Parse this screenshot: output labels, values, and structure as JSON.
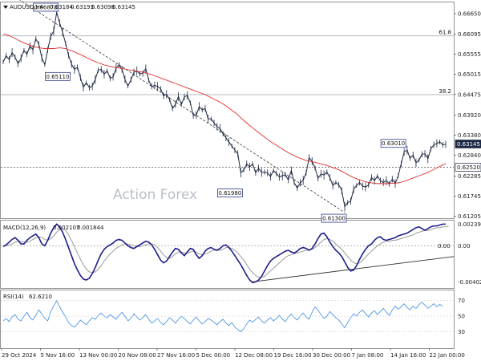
{
  "chart_data": [
    {
      "type": "candlestick",
      "header": {
        "symbol": "AUDUSD,H4",
        "ohlc": [
          "0.63184",
          "0.63193",
          "0.63098",
          "0.63145"
        ]
      },
      "watermark": "Action Forex",
      "ylim": [
        0.6115,
        0.6695
      ],
      "yticks": [
        "0.66650",
        "0.66095",
        "0.65555",
        "0.65015",
        "0.64475",
        "0.63920",
        "0.63380",
        "0.62840",
        "0.62285",
        "0.61745",
        "0.61205"
      ],
      "last_price": "0.63145",
      "ma_last": "0.62520",
      "fib_levels": [
        {
          "label": "61.8",
          "value": 0.6605
        },
        {
          "label": "38.2",
          "value": 0.6447
        }
      ],
      "dotted_level": 0.6252,
      "annotations": [
        {
          "text": "0.66870",
          "value": 0.6687,
          "anchor": "high"
        },
        {
          "text": "0.65110",
          "value": 0.6511,
          "anchor": "low"
        },
        {
          "text": "0.61980",
          "value": 0.6198,
          "anchor": "low"
        },
        {
          "text": "0.63010",
          "value": 0.6301,
          "anchor": "high"
        },
        {
          "text": "0.61300",
          "value": 0.613,
          "anchor": "low"
        }
      ],
      "trendline": {
        "from": 0.6687,
        "to": 0.613
      },
      "series": [
        {
          "name": "price",
          "values": [
            0.6535,
            0.6552,
            0.6541,
            0.656,
            0.6548,
            0.653,
            0.6545,
            0.6566,
            0.6556,
            0.6578,
            0.6568,
            0.6597,
            0.6582,
            0.6546,
            0.6528,
            0.6568,
            0.6604,
            0.6618,
            0.6668,
            0.664,
            0.6615,
            0.6585,
            0.6553,
            0.6529,
            0.6515,
            0.6521,
            0.6493,
            0.6467,
            0.6479,
            0.6466,
            0.647,
            0.6488,
            0.6513,
            0.6515,
            0.6502,
            0.6511,
            0.6491,
            0.6495,
            0.6518,
            0.6528,
            0.6515,
            0.6488,
            0.647,
            0.6487,
            0.6507,
            0.6511,
            0.6503,
            0.6504,
            0.6517,
            0.6486,
            0.6469,
            0.6472,
            0.6469,
            0.6463,
            0.6444,
            0.6448,
            0.6434,
            0.641,
            0.6421,
            0.6442,
            0.6421,
            0.6441,
            0.6445,
            0.6425,
            0.6391,
            0.6392,
            0.6415,
            0.6406,
            0.641,
            0.6382,
            0.6382,
            0.6371,
            0.6361,
            0.6356,
            0.6342,
            0.6331,
            0.632,
            0.6309,
            0.6298,
            0.6288,
            0.6237,
            0.6245,
            0.6261,
            0.6253,
            0.6261,
            0.6237,
            0.6249,
            0.6238,
            0.6239,
            0.6237,
            0.6227,
            0.6243,
            0.6235,
            0.6226,
            0.6229,
            0.6232,
            0.6218,
            0.6243,
            0.621,
            0.6196,
            0.621,
            0.6217,
            0.6237,
            0.6278,
            0.6268,
            0.625,
            0.6222,
            0.6234,
            0.6231,
            0.6239,
            0.6224,
            0.6203,
            0.6211,
            0.6205,
            0.6189,
            0.6146,
            0.6157,
            0.6161,
            0.6193,
            0.6203,
            0.6211,
            0.6201,
            0.6199,
            0.6204,
            0.6224,
            0.6216,
            0.6228,
            0.6216,
            0.6211,
            0.6216,
            0.6207,
            0.622,
            0.6208,
            0.6229,
            0.6261,
            0.6293,
            0.6298,
            0.6276,
            0.6285,
            0.6264,
            0.6271,
            0.6287,
            0.6288,
            0.6275,
            0.6302,
            0.6312,
            0.6316,
            0.632,
            0.6312,
            0.6314
          ]
        },
        {
          "name": "ma",
          "values": [
            0.661,
            0.6608,
            0.6606,
            0.6602,
            0.6598,
            0.6594,
            0.659,
            0.6586,
            0.6583,
            0.658,
            0.6577,
            0.6575,
            0.6573,
            0.6572,
            0.6571,
            0.6571,
            0.6571,
            0.6571,
            0.6572,
            0.6573,
            0.6572,
            0.6571,
            0.6568,
            0.6565,
            0.6562,
            0.6558,
            0.6555,
            0.6551,
            0.6547,
            0.6543,
            0.6539,
            0.6536,
            0.6533,
            0.653,
            0.6527,
            0.6525,
            0.6523,
            0.6521,
            0.652,
            0.6519,
            0.6517,
            0.6516,
            0.6514,
            0.6513,
            0.6512,
            0.651,
            0.6509,
            0.6507,
            0.6505,
            0.6503,
            0.6501,
            0.6498,
            0.6495,
            0.6492,
            0.6489,
            0.6486,
            0.6483,
            0.648,
            0.6477,
            0.6474,
            0.6471,
            0.6468,
            0.6465,
            0.6462,
            0.6459,
            0.6456,
            0.6453,
            0.645,
            0.6447,
            0.6443,
            0.6439,
            0.6435,
            0.6431,
            0.6427,
            0.6422,
            0.6417,
            0.6411,
            0.6405,
            0.6399,
            0.6393,
            0.6385,
            0.6378,
            0.6371,
            0.6364,
            0.6358,
            0.6351,
            0.6345,
            0.6339,
            0.6333,
            0.6327,
            0.6321,
            0.6316,
            0.6311,
            0.6306,
            0.6301,
            0.6296,
            0.6291,
            0.6287,
            0.6283,
            0.6279,
            0.6276,
            0.6273,
            0.627,
            0.6268,
            0.6267,
            0.6265,
            0.6263,
            0.6261,
            0.6259,
            0.6257,
            0.6254,
            0.6251,
            0.6248,
            0.6245,
            0.6241,
            0.6236,
            0.6232,
            0.6228,
            0.6224,
            0.6221,
            0.6218,
            0.6215,
            0.6213,
            0.6211,
            0.621,
            0.6209,
            0.6208,
            0.6208,
            0.6208,
            0.6208,
            0.6208,
            0.6209,
            0.6209,
            0.621,
            0.6212,
            0.6214,
            0.6217,
            0.622,
            0.6223,
            0.6226,
            0.6229,
            0.6232,
            0.6235,
            0.6238,
            0.6242,
            0.6246,
            0.625,
            0.6254,
            0.6258,
            0.6262
          ]
        }
      ],
      "colors": {
        "price": "#1e2a44",
        "ma": "#e03030",
        "grid": "#9aa0a6",
        "trend": "#333333"
      }
    },
    {
      "type": "line",
      "header": {
        "name": "MACD(12,26,9)",
        "values": [
          "0.002107",
          "0.001844"
        ]
      },
      "ylim": [
        -0.0046,
        0.0027
      ],
      "yticks": [
        "0.002399",
        "0.00",
        "-0.004021"
      ],
      "zero_label": "0.00",
      "series": [
        {
          "name": "macd",
          "values": [
            -0.0001,
            0.0001,
            0.0004,
            0.0007,
            0.0009,
            0.0006,
            0.0002,
            0.0002,
            0.0006,
            0.0009,
            0.0011,
            0.0013,
            0.0009,
            0.0002,
            0.0,
            0.0006,
            0.0014,
            0.002,
            0.0024,
            0.0021,
            0.0015,
            0.0007,
            -0.0002,
            -0.0011,
            -0.002,
            -0.0027,
            -0.0033,
            -0.0037,
            -0.0038,
            -0.0036,
            -0.0031,
            -0.0024,
            -0.0016,
            -0.0009,
            -0.0004,
            -0.0001,
            0.0001,
            0.0003,
            0.0006,
            0.0007,
            0.0006,
            0.0003,
            0.0,
            -0.0002,
            -0.0003,
            -0.0001,
            0.0001,
            0.0003,
            0.0005,
            0.0004,
            0.0001,
            -0.0004,
            -0.001,
            -0.0016,
            -0.0019,
            -0.0017,
            -0.0012,
            -0.0007,
            -0.0003,
            -0.0004,
            -0.0008,
            -0.0011,
            -0.0007,
            -0.0003,
            -0.0004,
            -0.001,
            -0.0014,
            -0.0011,
            -0.0006,
            -0.0003,
            -0.0002,
            -0.0004,
            -0.0005,
            -0.0003,
            0.0,
            0.0001,
            -0.0002,
            -0.0006,
            -0.0011,
            -0.0016,
            -0.0021,
            -0.0027,
            -0.0033,
            -0.0038,
            -0.0041,
            -0.004,
            -0.0038,
            -0.0034,
            -0.0028,
            -0.0022,
            -0.0017,
            -0.0014,
            -0.0012,
            -0.001,
            -0.0008,
            -0.0006,
            -0.0005,
            -0.0007,
            -0.0008,
            -0.0006,
            -0.0003,
            -0.0002,
            -0.0003,
            -0.0005,
            -0.0003,
            0.0002,
            0.0008,
            0.0013,
            0.0014,
            0.001,
            0.0004,
            -0.0001,
            -0.0005,
            -0.0008,
            -0.0012,
            -0.0018,
            -0.0024,
            -0.0028,
            -0.0027,
            -0.0022,
            -0.0015,
            -0.0009,
            -0.0004,
            0.0,
            0.0002,
            0.0006,
            0.0009,
            0.001,
            0.0007,
            0.0006,
            0.0007,
            0.0008,
            0.0009,
            0.0011,
            0.0012,
            0.0013,
            0.0014,
            0.0016,
            0.0018,
            0.002,
            0.0021,
            0.0019,
            0.0017,
            0.0019,
            0.0021,
            0.0022,
            0.0022,
            0.0023,
            0.0024,
            0.0024
          ]
        },
        {
          "name": "signal",
          "values": [
            0.0,
            0.0,
            0.0001,
            0.0002,
            0.0004,
            0.0005,
            0.0005,
            0.0004,
            0.0004,
            0.0005,
            0.0007,
            0.0009,
            0.001,
            0.0009,
            0.0007,
            0.0006,
            0.0008,
            0.0011,
            0.0015,
            0.0018,
            0.0019,
            0.0017,
            0.0012,
            0.0006,
            -0.0001,
            -0.0008,
            -0.0015,
            -0.0021,
            -0.0026,
            -0.0029,
            -0.003,
            -0.0029,
            -0.0026,
            -0.0022,
            -0.0017,
            -0.0013,
            -0.0009,
            -0.0006,
            -0.0003,
            -0.0001,
            0.0001,
            0.0002,
            0.0002,
            0.0001,
            0.0,
            -0.0001,
            -0.0001,
            0.0,
            0.0001,
            0.0002,
            0.0002,
            0.0001,
            -0.0002,
            -0.0006,
            -0.001,
            -0.0013,
            -0.0014,
            -0.0012,
            -0.0009,
            -0.0007,
            -0.0007,
            -0.0008,
            -0.0008,
            -0.0007,
            -0.0006,
            -0.0007,
            -0.0009,
            -0.001,
            -0.0009,
            -0.0008,
            -0.0006,
            -0.0005,
            -0.0005,
            -0.0005,
            -0.0004,
            -0.0002,
            -0.0002,
            -0.0003,
            -0.0005,
            -0.0008,
            -0.0012,
            -0.0016,
            -0.0021,
            -0.0026,
            -0.003,
            -0.0033,
            -0.0035,
            -0.0035,
            -0.0034,
            -0.0031,
            -0.0028,
            -0.0025,
            -0.0022,
            -0.0019,
            -0.0016,
            -0.0013,
            -0.0011,
            -0.001,
            -0.0009,
            -0.0008,
            -0.0007,
            -0.0006,
            -0.0005,
            -0.0005,
            -0.0004,
            -0.0002,
            0.0001,
            0.0004,
            0.0007,
            0.0008,
            0.0007,
            0.0005,
            0.0002,
            -0.0001,
            -0.0004,
            -0.0008,
            -0.0012,
            -0.0016,
            -0.0019,
            -0.002,
            -0.0019,
            -0.0016,
            -0.0013,
            -0.0009,
            -0.0006,
            -0.0003,
            0.0,
            0.0002,
            0.0004,
            0.0005,
            0.0005,
            0.0006,
            0.0006,
            0.0007,
            0.0008,
            0.0009,
            0.001,
            0.0011,
            0.0012,
            0.0014,
            0.0015,
            0.0016,
            0.0017,
            0.0017,
            0.0018,
            0.0019,
            0.002,
            0.002,
            0.0021,
            0.0021,
            0.0022
          ]
        }
      ],
      "trendline": {
        "from": -0.004,
        "to": -0.0012
      },
      "colors": {
        "macd": "#1e1e8c",
        "signal": "#9a9a9a",
        "trend": "#333333"
      }
    },
    {
      "type": "line",
      "header": {
        "name": "RSI(14)",
        "value": "62.6210"
      },
      "ylim": [
        10,
        82
      ],
      "yticks": [
        "70",
        "50",
        "30"
      ],
      "series": [
        {
          "name": "rsi",
          "values": [
            44,
            47,
            43,
            49,
            52,
            46,
            44,
            50,
            55,
            48,
            45,
            51,
            58,
            53,
            47,
            44,
            56,
            63,
            70,
            62,
            55,
            49,
            42,
            38,
            36,
            40,
            45,
            42,
            39,
            44,
            48,
            46,
            51,
            54,
            50,
            48,
            52,
            49,
            46,
            51,
            55,
            50,
            44,
            47,
            53,
            49,
            45,
            48,
            52,
            46,
            41,
            44,
            47,
            42,
            39,
            43,
            48,
            45,
            41,
            46,
            50,
            47,
            43,
            40,
            45,
            49,
            44,
            40,
            43,
            47,
            45,
            42,
            39,
            43,
            46,
            41,
            38,
            42,
            36,
            33,
            30,
            34,
            40,
            45,
            42,
            46,
            49,
            44,
            41,
            45,
            48,
            44,
            47,
            51,
            46,
            43,
            49,
            53,
            48,
            45,
            50,
            54,
            49,
            46,
            55,
            62,
            58,
            52,
            47,
            50,
            56,
            52,
            48,
            45,
            40,
            35,
            42,
            48,
            53,
            50,
            55,
            58,
            53,
            49,
            54,
            57,
            52,
            56,
            60,
            55,
            51,
            58,
            63,
            59,
            62,
            66,
            61,
            58,
            63,
            60,
            65,
            68,
            64,
            60,
            63,
            66,
            62,
            65,
            63
          ]
        }
      ],
      "colors": {
        "rsi": "#3d8be0"
      }
    }
  ],
  "x_ticks": [
    "29 Oct 2024",
    "5 Nov 16:00",
    "13 Nov 00:00",
    "20 Nov 08:00",
    "27 Nov 16:00",
    "5 Dec 00:00",
    "12 Dec 08:00",
    "19 Dec 16:00",
    "30 Dec 00:00",
    "7 Jan 08:00",
    "14 Jan 16:00",
    "22 Jan 00:00"
  ]
}
